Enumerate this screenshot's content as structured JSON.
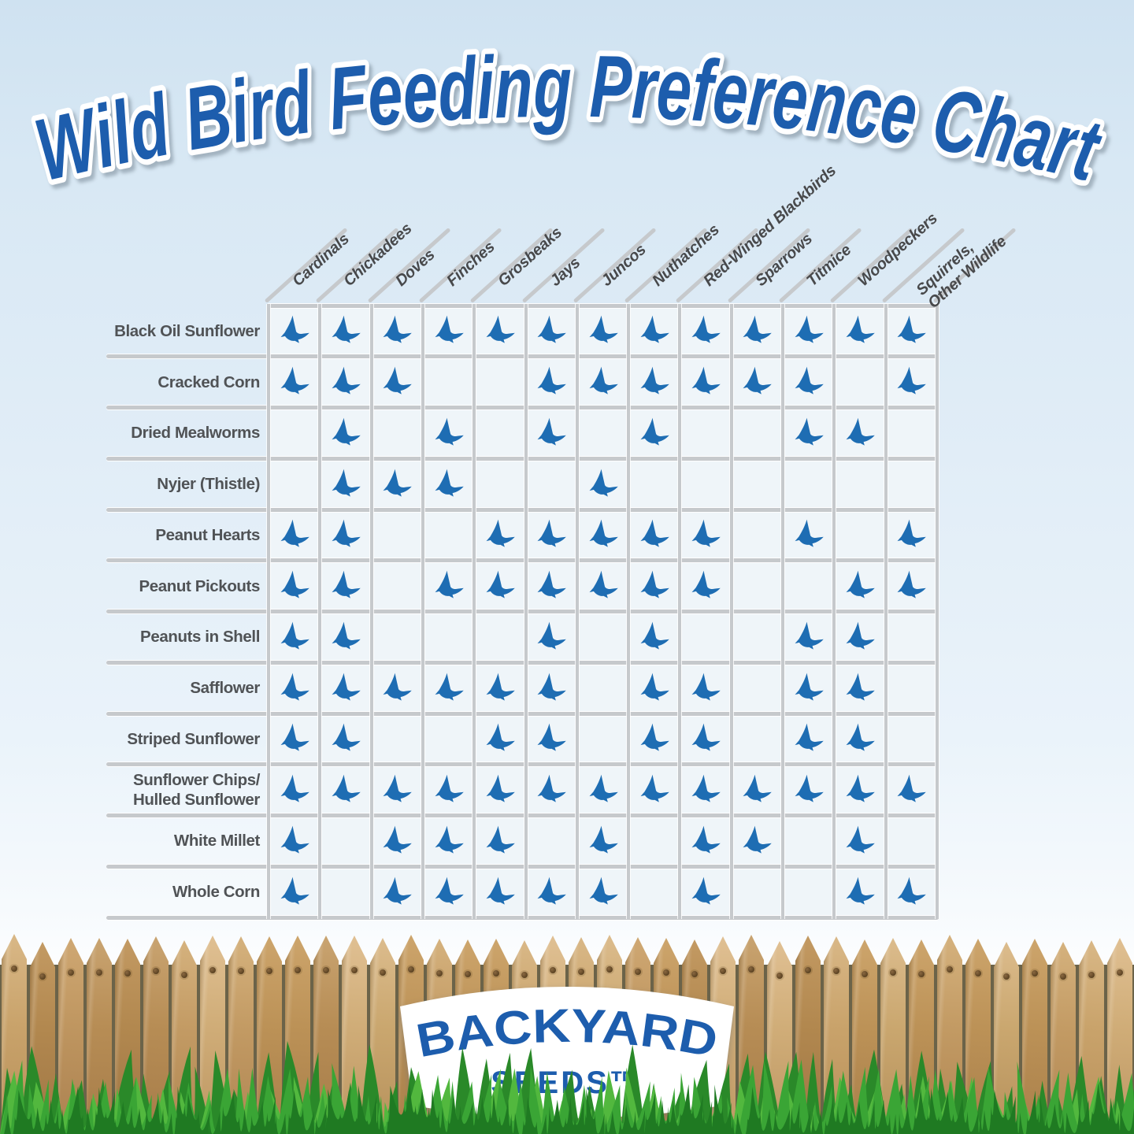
{
  "title": "Wild Bird Feeding Preference Chart",
  "chart_data": {
    "type": "table",
    "title": "Wild Bird Feeding Preference Chart",
    "cell_marker": "blue-bird-icon",
    "columns": [
      "Cardinals",
      "Chickadees",
      "Doves",
      "Finches",
      "Grosbeaks",
      "Jays",
      "Juncos",
      "Nuthatches",
      "Red-Winged Blackbirds",
      "Sparrows",
      "Titmice",
      "Woodpeckers",
      "Squirrels,\nOther Wildlife"
    ],
    "rows": [
      {
        "seed": "Black Oil Sunflower",
        "eats": [
          1,
          1,
          1,
          1,
          1,
          1,
          1,
          1,
          1,
          1,
          1,
          1,
          1
        ]
      },
      {
        "seed": "Cracked Corn",
        "eats": [
          1,
          1,
          1,
          0,
          0,
          1,
          1,
          1,
          1,
          1,
          1,
          0,
          1
        ]
      },
      {
        "seed": "Dried Mealworms",
        "eats": [
          0,
          1,
          0,
          1,
          0,
          1,
          0,
          1,
          0,
          0,
          1,
          1,
          0
        ]
      },
      {
        "seed": "Nyjer (Thistle)",
        "eats": [
          0,
          1,
          1,
          1,
          0,
          0,
          1,
          0,
          0,
          0,
          0,
          0,
          0
        ]
      },
      {
        "seed": "Peanut Hearts",
        "eats": [
          1,
          1,
          0,
          0,
          1,
          1,
          1,
          1,
          1,
          0,
          1,
          0,
          1
        ]
      },
      {
        "seed": "Peanut Pickouts",
        "eats": [
          1,
          1,
          0,
          1,
          1,
          1,
          1,
          1,
          1,
          0,
          0,
          1,
          1
        ]
      },
      {
        "seed": "Peanuts in Shell",
        "eats": [
          1,
          1,
          0,
          0,
          0,
          1,
          0,
          1,
          0,
          0,
          1,
          1,
          0
        ]
      },
      {
        "seed": "Safflower",
        "eats": [
          1,
          1,
          1,
          1,
          1,
          1,
          0,
          1,
          1,
          0,
          1,
          1,
          0
        ]
      },
      {
        "seed": "Striped Sunflower",
        "eats": [
          1,
          1,
          0,
          0,
          1,
          1,
          0,
          1,
          1,
          0,
          1,
          1,
          0
        ]
      },
      {
        "seed": "Sunflower Chips/\nHulled Sunflower",
        "eats": [
          1,
          1,
          1,
          1,
          1,
          1,
          1,
          1,
          1,
          1,
          1,
          1,
          1
        ]
      },
      {
        "seed": "White Millet",
        "eats": [
          1,
          0,
          1,
          1,
          1,
          0,
          1,
          0,
          1,
          1,
          0,
          1,
          0
        ]
      },
      {
        "seed": "Whole Corn",
        "eats": [
          1,
          0,
          1,
          1,
          1,
          1,
          1,
          0,
          1,
          0,
          0,
          1,
          1
        ]
      }
    ]
  },
  "logo": {
    "brand": "BACKYARD",
    "sub": "SEEDS™"
  },
  "colors": {
    "title_blue": "#1d5dad",
    "bird_blue": "#1e6db3",
    "grid_line": "#c6c9cc",
    "header_gray": "#48494b",
    "label_gray": "#505356",
    "grass_green": "#3aa535",
    "wood_tan": "#c9a36b"
  }
}
